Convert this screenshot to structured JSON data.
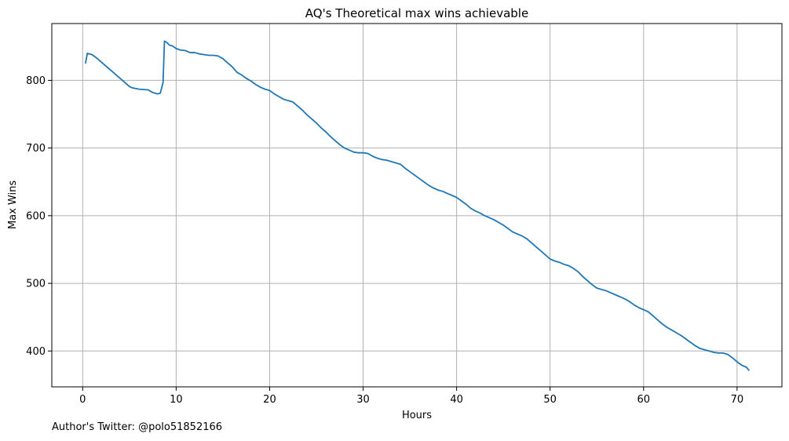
{
  "chart_data": {
    "type": "line",
    "title": "AQ's Theoretical max wins achievable",
    "xlabel": "Hours",
    "ylabel": "Max Wins",
    "xlim": [
      -3.3,
      74.8
    ],
    "ylim": [
      347,
      884
    ],
    "xticks": [
      0,
      10,
      20,
      30,
      40,
      50,
      60,
      70
    ],
    "yticks": [
      400,
      500,
      600,
      700,
      800
    ],
    "grid": true,
    "color": "#1f77b4",
    "series": [
      {
        "x": [
          0.3,
          0.5,
          1.0,
          1.5,
          2.0,
          3.0,
          4.0,
          5.0,
          5.3,
          6.0,
          7.0,
          7.5,
          8.0,
          8.3,
          8.6,
          8.75,
          9.0,
          9.3,
          9.6,
          10.0,
          10.4,
          11.0,
          11.5,
          12.0,
          12.5,
          13.0,
          13.5,
          14.0,
          14.5,
          15.0,
          15.5,
          16.0,
          16.5,
          17.0,
          17.5,
          18.0,
          18.5,
          19.0,
          19.5,
          20.0,
          20.5,
          21.0,
          21.5,
          22.0,
          22.5,
          23.0,
          23.5,
          24.0,
          24.5,
          25.0,
          25.5,
          26.0,
          26.5,
          27.0,
          27.5,
          28.0,
          28.5,
          29.0,
          29.5,
          30.0,
          30.5,
          31.0,
          31.5,
          32.0,
          32.5,
          33.0,
          33.5,
          34.0,
          34.5,
          35.0,
          35.5,
          36.0,
          36.5,
          37.0,
          37.5,
          38.0,
          38.5,
          39.0,
          39.5,
          40.0,
          40.5,
          41.0,
          41.5,
          42.0,
          42.5,
          43.0,
          43.5,
          44.0,
          44.5,
          45.0,
          45.5,
          46.0,
          46.5,
          47.0,
          47.5,
          48.0,
          48.5,
          49.0,
          49.5,
          50.0,
          50.5,
          51.0,
          51.5,
          52.0,
          52.5,
          53.0,
          53.5,
          54.0,
          54.5,
          55.0,
          55.5,
          56.0,
          56.5,
          57.0,
          57.5,
          58.0,
          58.5,
          59.0,
          59.5,
          60.0,
          60.5,
          61.0,
          61.5,
          62.0,
          62.5,
          63.0,
          63.5,
          64.0,
          64.5,
          65.0,
          65.5,
          66.0,
          66.5,
          67.0,
          67.5,
          68.0,
          68.5,
          69.0,
          69.5,
          70.0,
          70.5,
          71.0,
          71.3
        ],
        "y": [
          825,
          840,
          838,
          833,
          827,
          815,
          803,
          791,
          789,
          787,
          786,
          782,
          780,
          781,
          797,
          858,
          856,
          852,
          851,
          847,
          845,
          844,
          841,
          841,
          839,
          838,
          837,
          837,
          836,
          832,
          826,
          820,
          812,
          808,
          803,
          799,
          794,
          790,
          787,
          785,
          780,
          776,
          772,
          770,
          768,
          762,
          756,
          749,
          743,
          737,
          730,
          724,
          717,
          711,
          705,
          700,
          697,
          694,
          693,
          693,
          692,
          688,
          685,
          683,
          682,
          680,
          678,
          676,
          670,
          665,
          660,
          655,
          650,
          645,
          641,
          638,
          636,
          633,
          630,
          627,
          622,
          617,
          611,
          607,
          604,
          600,
          597,
          594,
          590,
          586,
          581,
          576,
          573,
          570,
          566,
          560,
          554,
          548,
          542,
          536,
          533,
          531,
          528,
          526,
          522,
          517,
          510,
          504,
          498,
          493,
          491,
          489,
          486,
          483,
          480,
          477,
          473,
          468,
          464,
          461,
          458,
          452,
          446,
          440,
          435,
          431,
          427,
          423,
          418,
          413,
          408,
          404,
          402,
          400,
          398,
          397,
          397,
          395,
          390,
          384,
          379,
          376,
          371
        ]
      }
    ]
  },
  "footer": {
    "author_note": "Author's Twitter: @polo51852166"
  }
}
